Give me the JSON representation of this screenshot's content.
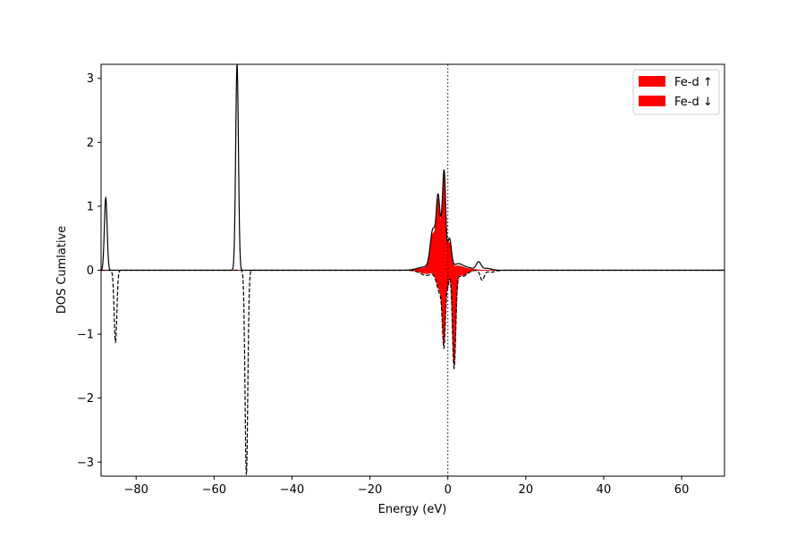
{
  "chart_data": {
    "type": "line",
    "title": "",
    "xlabel": "Energy (eV)",
    "ylabel": "DOS Cumlative",
    "xlim": [
      -89,
      71
    ],
    "ylim": [
      -3.22,
      3.22
    ],
    "xticks": [
      -80,
      -60,
      -40,
      -20,
      0,
      20,
      40,
      60
    ],
    "xtick_labels": [
      "−80",
      "−60",
      "−40",
      "−20",
      "0",
      "20",
      "40",
      "60"
    ],
    "yticks": [
      -3,
      -2,
      -1,
      0,
      1,
      2,
      3
    ],
    "ytick_labels": [
      "−3",
      "−2",
      "−1",
      "0",
      "1",
      "2",
      "3"
    ],
    "fermi_level": 0,
    "grid": false,
    "legend": {
      "position": "top-right",
      "entries": [
        {
          "label": "Fe-d ↑",
          "color": "#ff0000"
        },
        {
          "label": "Fe-d ↓",
          "color": "#ff0000"
        }
      ]
    },
    "series": [
      {
        "id": "total-up",
        "style": "solid",
        "color": "#000000",
        "peaks": [
          {
            "center": -87.8,
            "height": 1.13,
            "width": 0.35
          },
          {
            "center": -54.1,
            "height": 3.22,
            "width": 0.35
          },
          {
            "center": -6.0,
            "height": 0.05,
            "width": 1.8
          },
          {
            "center": -3.8,
            "height": 0.62,
            "width": 0.7
          },
          {
            "center": -2.5,
            "height": 1.03,
            "width": 0.45
          },
          {
            "center": -1.5,
            "height": 0.55,
            "width": 0.45
          },
          {
            "center": -0.9,
            "height": 1.3,
            "width": 0.38
          },
          {
            "center": 0.4,
            "height": 0.48,
            "width": 0.5
          },
          {
            "center": 2.5,
            "height": 0.09,
            "width": 1.2
          },
          {
            "center": 5.0,
            "height": 0.04,
            "width": 1.6
          },
          {
            "center": 7.9,
            "height": 0.12,
            "width": 0.6
          },
          {
            "center": 10.0,
            "height": 0.03,
            "width": 1.2
          }
        ]
      },
      {
        "id": "total-down",
        "style": "dashed",
        "color": "#000000",
        "peaks": [
          {
            "center": -85.3,
            "height": -1.12,
            "width": 0.35
          },
          {
            "center": -51.7,
            "height": -3.2,
            "width": 0.35
          },
          {
            "center": -5.5,
            "height": -0.08,
            "width": 1.6
          },
          {
            "center": -2.0,
            "height": -0.35,
            "width": 0.8
          },
          {
            "center": -1.0,
            "height": -1.05,
            "width": 0.38
          },
          {
            "center": 0.0,
            "height": -0.22,
            "width": 0.35
          },
          {
            "center": 1.6,
            "height": -1.5,
            "width": 0.42
          },
          {
            "center": 3.6,
            "height": -0.1,
            "width": 1.3
          },
          {
            "center": 8.8,
            "height": -0.15,
            "width": 0.5
          },
          {
            "center": 11.0,
            "height": -0.03,
            "width": 1.2
          }
        ]
      },
      {
        "id": "fe-d-up",
        "label": "Fe-d ↑",
        "style": "fill",
        "color": "#ff0000",
        "peaks": [
          {
            "center": -6.0,
            "height": 0.03,
            "width": 1.6
          },
          {
            "center": -3.8,
            "height": 0.55,
            "width": 0.7
          },
          {
            "center": -2.5,
            "height": 0.97,
            "width": 0.45
          },
          {
            "center": -1.5,
            "height": 0.5,
            "width": 0.45
          },
          {
            "center": -0.9,
            "height": 1.25,
            "width": 0.38
          },
          {
            "center": 0.4,
            "height": 0.42,
            "width": 0.5
          },
          {
            "center": 2.5,
            "height": 0.06,
            "width": 1.2
          },
          {
            "center": 5.0,
            "height": 0.02,
            "width": 1.6
          }
        ]
      },
      {
        "id": "fe-d-down",
        "label": "Fe-d ↓",
        "style": "fill",
        "color": "#ff0000",
        "peaks": [
          {
            "center": -5.5,
            "height": -0.05,
            "width": 1.6
          },
          {
            "center": -2.0,
            "height": -0.3,
            "width": 0.8
          },
          {
            "center": -1.0,
            "height": -1.0,
            "width": 0.38
          },
          {
            "center": 0.0,
            "height": -0.18,
            "width": 0.35
          },
          {
            "center": 1.6,
            "height": -1.45,
            "width": 0.42
          },
          {
            "center": 3.6,
            "height": -0.08,
            "width": 1.3
          }
        ]
      }
    ]
  }
}
